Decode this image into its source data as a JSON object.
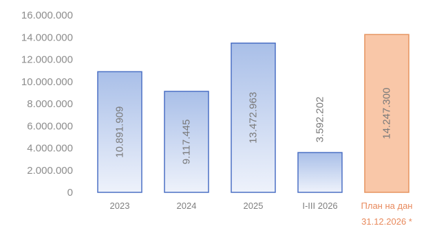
{
  "chart_data": {
    "type": "bar",
    "title": "",
    "xlabel": "",
    "ylabel": "",
    "ylim": [
      0,
      16000000
    ],
    "yticks": [
      {
        "value": 0,
        "label": "0"
      },
      {
        "value": 2000000,
        "label": "2.000.000"
      },
      {
        "value": 4000000,
        "label": "4.000.000"
      },
      {
        "value": 6000000,
        "label": "6.000.000"
      },
      {
        "value": 8000000,
        "label": "8.000.000"
      },
      {
        "value": 10000000,
        "label": "10.000.000"
      },
      {
        "value": 12000000,
        "label": "12.000.000"
      },
      {
        "value": 14000000,
        "label": "14.000.000"
      },
      {
        "value": 16000000,
        "label": "16.000.000"
      }
    ],
    "grid": false,
    "legend": "none",
    "categories": [
      [
        "2023"
      ],
      [
        "2024"
      ],
      [
        "2025"
      ],
      [
        "I-III 2026"
      ],
      [
        "План на дан",
        "31.12.2026 *"
      ]
    ],
    "values": [
      10891909,
      9117445,
      13472963,
      3592202,
      14247300
    ],
    "value_labels": [
      "10.891.909",
      "9.117.445",
      "13.472.963",
      "3.592.202",
      "14.247.300"
    ],
    "colors": {
      "actual_fill_top": "#a9bfe8",
      "actual_fill_bottom": "#eef2fb",
      "actual_stroke": "#4a6fc4",
      "plan_fill": "#f9c7a8",
      "plan_stroke": "#e6935f",
      "plan_label": "#e8895c",
      "axis_text": "#8c8c8c"
    },
    "highlight_index": 4
  }
}
